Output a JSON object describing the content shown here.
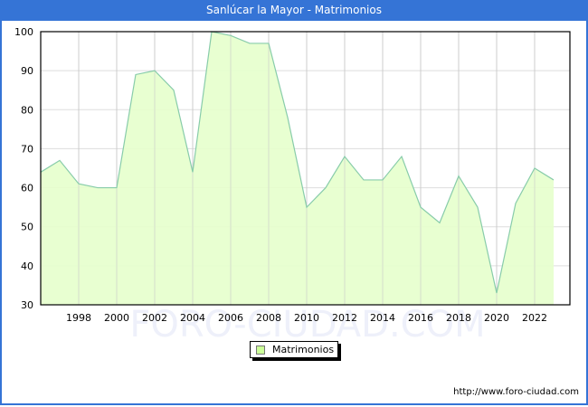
{
  "header": {
    "title": "Sanlúcar la Mayor - Matrimonios"
  },
  "legend": {
    "label": "Matrimonios",
    "swatch_color": "#ccff99"
  },
  "footer": {
    "url_text": "http://www.foro-ciudad.com"
  },
  "watermark": "FORO-CIUDAD.COM",
  "colors": {
    "title_bg": "#3574d6",
    "area_fill": "#e6ffcc",
    "line": "#88ccaa",
    "grid": "#dddddd"
  },
  "chart_data": {
    "type": "area",
    "title": "Sanlúcar la Mayor - Matrimonios",
    "xlabel": "",
    "ylabel": "",
    "x": [
      1996,
      1997,
      1998,
      1999,
      2000,
      2001,
      2002,
      2003,
      2004,
      2005,
      2006,
      2007,
      2008,
      2009,
      2010,
      2011,
      2012,
      2013,
      2014,
      2015,
      2016,
      2017,
      2018,
      2019,
      2020,
      2021,
      2022,
      2023
    ],
    "series": [
      {
        "name": "Matrimonios",
        "values": [
          64,
          67,
          61,
          60,
          60,
          89,
          90,
          85,
          64,
          100,
          99,
          97,
          97,
          78,
          55,
          60,
          68,
          62,
          62,
          68,
          55,
          51,
          63,
          55,
          33,
          56,
          65,
          62
        ]
      }
    ],
    "ylim": [
      30,
      100
    ],
    "yticks": [
      30,
      40,
      50,
      60,
      70,
      80,
      90,
      100
    ],
    "xticks": [
      1998,
      2000,
      2002,
      2004,
      2006,
      2008,
      2010,
      2012,
      2014,
      2016,
      2018,
      2020,
      2022
    ],
    "grid": true,
    "legend_position": "bottom-center"
  }
}
